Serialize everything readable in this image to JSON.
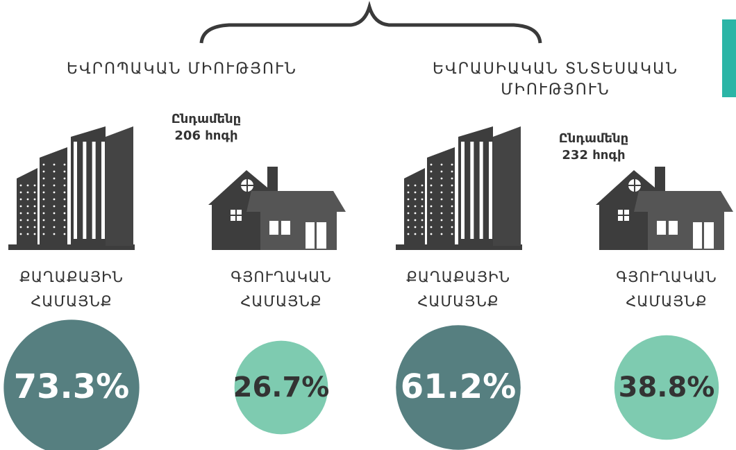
{
  "unions": [
    {
      "name": [
        "ԵՎՐՈՊԱԿԱՆ ՄԻՈՒԹՅՈՒՆ"
      ],
      "total": [
        "Ընդամենը",
        "206 հոգի"
      ],
      "communities": [
        {
          "label": [
            "ՔԱՂԱՔԱՅԻՆ",
            "ՀԱՄԱՅՆՔ"
          ],
          "share": {
            "value": 73.3,
            "label": "73.3%"
          }
        },
        {
          "label": [
            "ԳՅՈՒՂԱԿԱՆ",
            "ՀԱՄԱՅՆՔ"
          ],
          "share": {
            "value": 26.7,
            "label": "26.7%"
          }
        }
      ]
    },
    {
      "name": [
        "ԵՎՐԱՍԻԱԿԱՆ ՏՆՏԵՍԱԿԱՆ",
        "ՄԻՈՒԹՅՈՒՆ"
      ],
      "total": [
        "Ընդամենը",
        "232 հոգի"
      ],
      "communities": [
        {
          "label": [
            "ՔԱՂԱՔԱՅԻՆ",
            "ՀԱՄԱՅՆՔ"
          ],
          "share": {
            "value": 61.2,
            "label": "61.2%"
          }
        },
        {
          "label": [
            "ԳՅՈՒՂԱԿԱՆ",
            "ՀԱՄԱՅՆՔ"
          ],
          "share": {
            "value": 38.8,
            "label": "38.8%"
          }
        }
      ]
    }
  ]
}
